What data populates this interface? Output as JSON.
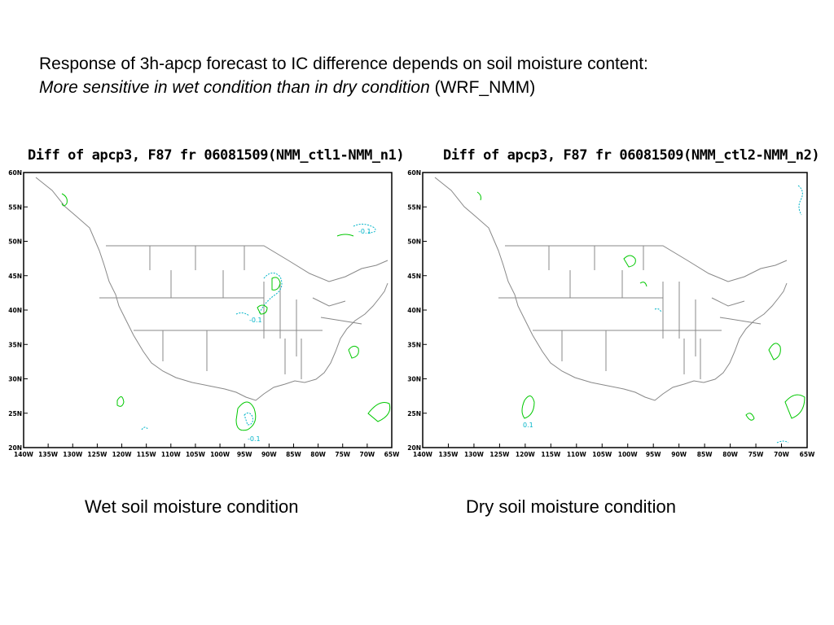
{
  "slide": {
    "title_line1": "Response of 3h-apcp forecast to IC difference depends on soil moisture content:",
    "title_line2_italic": "More sensitive in wet condition than in dry condition",
    "title_line2_suffix": " (WRF_NMM)"
  },
  "maps": [
    {
      "title": "Diff of apcp3, F87 fr 06081509(NMM_ctl1-NMM_n1)",
      "caption": "Wet soil moisture condition",
      "lat_labels": [
        "60N",
        "55N",
        "50N",
        "45N",
        "40N",
        "35N",
        "30N",
        "25N",
        "20N"
      ],
      "lon_labels": [
        "140W",
        "135W",
        "130W",
        "125W",
        "120W",
        "115W",
        "110W",
        "105W",
        "100W",
        "95W",
        "90W",
        "85W",
        "80W",
        "75W",
        "70W",
        "65W"
      ],
      "contour_labels": [
        "-0.1",
        "-0.1",
        "-0.1"
      ],
      "colors": {
        "positive": "#00c800",
        "negative": "#00b4c8",
        "border": "#888888"
      }
    },
    {
      "title": "Diff of apcp3, F87 fr 06081509(NMM_ctl2-NMM_n2)",
      "caption": "Dry soil moisture condition",
      "lat_labels": [
        "60N",
        "55N",
        "50N",
        "45N",
        "40N",
        "35N",
        "30N",
        "25N",
        "20N"
      ],
      "lon_labels": [
        "140W",
        "135W",
        "130W",
        "125W",
        "120W",
        "115W",
        "110W",
        "105W",
        "100W",
        "95W",
        "90W",
        "85W",
        "80W",
        "75W",
        "70W",
        "65W"
      ],
      "contour_labels": [
        "0.1"
      ],
      "colors": {
        "positive": "#00c800",
        "negative": "#00b4c8",
        "border": "#888888"
      }
    }
  ]
}
